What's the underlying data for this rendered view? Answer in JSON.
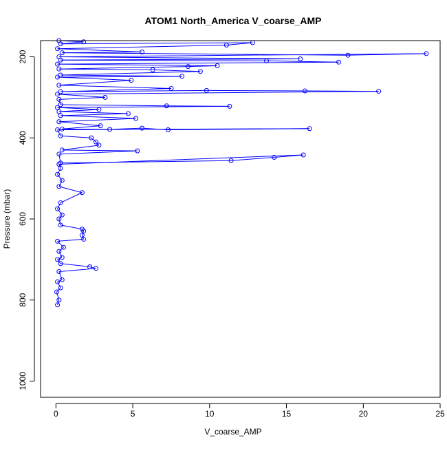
{
  "chart_data": {
    "type": "line",
    "title": "ATOM1 North_America V_coarse_AMP",
    "xlabel": "V_coarse_AMP",
    "ylabel": "Pressure (mbar)",
    "xlim": [
      -1.0,
      25.0
    ],
    "ylim": [
      1040,
      160
    ],
    "y_axis_inverted": true,
    "x_ticks": [
      0,
      5,
      10,
      15,
      20,
      25
    ],
    "y_ticks": [
      200,
      400,
      600,
      800,
      1000
    ],
    "grid": false,
    "legend": "none",
    "series_color": "#0000ff",
    "marker": "open-circle",
    "series": [
      {
        "points": [
          [
            0.1,
            812
          ],
          [
            0.2,
            800
          ],
          [
            0.05,
            780
          ],
          [
            0.3,
            770
          ],
          [
            0.1,
            755
          ],
          [
            0.4,
            750
          ],
          [
            0.2,
            730
          ],
          [
            2.6,
            722
          ],
          [
            2.2,
            718
          ],
          [
            0.3,
            710
          ],
          [
            0.1,
            700
          ],
          [
            0.4,
            695
          ],
          [
            0.2,
            680
          ],
          [
            0.5,
            670
          ],
          [
            0.1,
            655
          ],
          [
            1.8,
            650
          ],
          [
            1.7,
            640
          ],
          [
            1.8,
            630
          ],
          [
            1.7,
            625
          ],
          [
            0.3,
            615
          ],
          [
            0.2,
            600
          ],
          [
            0.4,
            590
          ],
          [
            0.1,
            575
          ],
          [
            0.3,
            560
          ],
          [
            1.7,
            535
          ],
          [
            0.2,
            520
          ],
          [
            0.4,
            505
          ],
          [
            0.1,
            490
          ],
          [
            0.3,
            475
          ],
          [
            0.2,
            465
          ],
          [
            16.1,
            442
          ],
          [
            14.2,
            448
          ],
          [
            11.4,
            456
          ],
          [
            0.3,
            462
          ],
          [
            0.2,
            440
          ],
          [
            5.3,
            432
          ],
          [
            0.4,
            430
          ],
          [
            2.8,
            418
          ],
          [
            2.6,
            410
          ],
          [
            2.3,
            400
          ],
          [
            0.3,
            395
          ],
          [
            0.1,
            380
          ],
          [
            16.5,
            377
          ],
          [
            7.3,
            380
          ],
          [
            5.6,
            376
          ],
          [
            3.5,
            379
          ],
          [
            0.4,
            378
          ],
          [
            2.9,
            370
          ],
          [
            0.2,
            360
          ],
          [
            5.2,
            352
          ],
          [
            0.3,
            345
          ],
          [
            4.7,
            340
          ],
          [
            0.2,
            335
          ],
          [
            2.8,
            330
          ],
          [
            0.1,
            325
          ],
          [
            11.3,
            322
          ],
          [
            7.2,
            321
          ],
          [
            0.3,
            318
          ],
          [
            0.2,
            305
          ],
          [
            3.2,
            300
          ],
          [
            0.1,
            292
          ],
          [
            21.0,
            285
          ],
          [
            16.2,
            284
          ],
          [
            9.8,
            283
          ],
          [
            0.3,
            286
          ],
          [
            7.5,
            278
          ],
          [
            0.2,
            270
          ],
          [
            4.9,
            258
          ],
          [
            0.1,
            250
          ],
          [
            8.2,
            248
          ],
          [
            0.3,
            245
          ],
          [
            9.4,
            236
          ],
          [
            6.3,
            232
          ],
          [
            0.2,
            230
          ],
          [
            8.6,
            224
          ],
          [
            10.5,
            222
          ],
          [
            0.1,
            218
          ],
          [
            18.4,
            213
          ],
          [
            13.7,
            210
          ],
          [
            0.3,
            208
          ],
          [
            15.9,
            205
          ],
          [
            0.2,
            200
          ],
          [
            24.1,
            192
          ],
          [
            19.0,
            196
          ],
          [
            0.4,
            190
          ],
          [
            5.6,
            188
          ],
          [
            0.1,
            180
          ],
          [
            11.1,
            171
          ],
          [
            12.8,
            165
          ],
          [
            0.3,
            168
          ],
          [
            1.8,
            163
          ],
          [
            0.2,
            160
          ]
        ]
      }
    ]
  }
}
